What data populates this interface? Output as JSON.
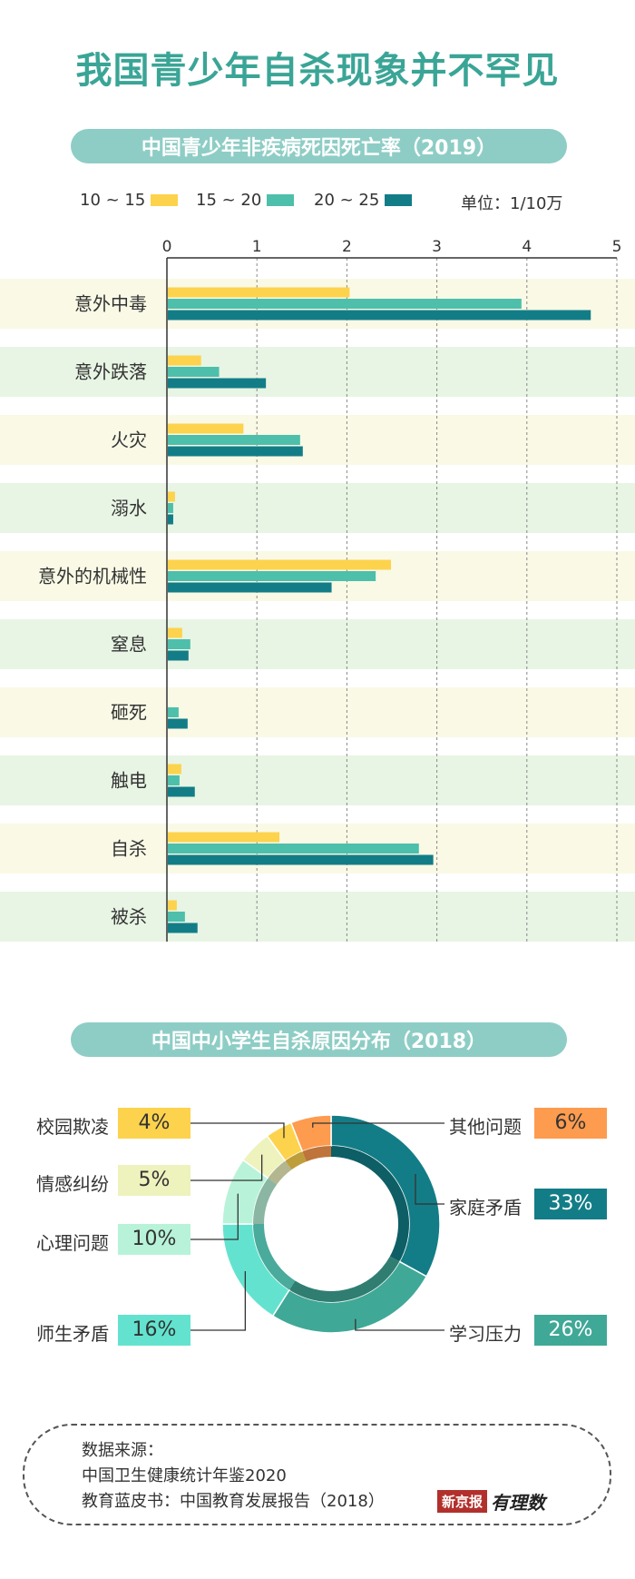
{
  "title": "我国青少年自杀现象并不罕见",
  "section1": {
    "title": "中国青少年非疾病死因死亡率（2019）",
    "unit": "单位：1/10万"
  },
  "section2": {
    "title": "中国中小学生自杀原因分布（2018）"
  },
  "source": {
    "heading": "数据来源：",
    "line1": "中国卫生健康统计年鉴2020",
    "line2": "教育蓝皮书：中国教育发展报告（2018）",
    "logo_text": "新京报",
    "logo_script": "有理数"
  },
  "chart_data": [
    {
      "type": "bar",
      "orientation": "horizontal",
      "categories": [
        "意外中毒",
        "意外跌落",
        "火灾",
        "溺水",
        "意外的机械性",
        "窒息",
        "砸死",
        "触电",
        "自杀",
        "被杀"
      ],
      "series": [
        {
          "name": "10 ~ 15",
          "color": "#fdd34d",
          "values": [
            2.02,
            0.37,
            0.84,
            0.08,
            2.48,
            0.16,
            0.0,
            0.15,
            1.24,
            0.1
          ]
        },
        {
          "name": "15 ~ 20",
          "color": "#4dbfab",
          "values": [
            3.93,
            0.57,
            1.47,
            0.06,
            2.31,
            0.25,
            0.12,
            0.13,
            2.79,
            0.19
          ]
        },
        {
          "name": "20 ~ 25",
          "color": "#137d87",
          "values": [
            4.7,
            1.09,
            1.5,
            0.06,
            1.82,
            0.23,
            0.22,
            0.3,
            2.95,
            0.33
          ]
        }
      ],
      "xlim": [
        0,
        5
      ],
      "xticks": [
        "0",
        "1",
        "2",
        "3",
        "4",
        "5"
      ],
      "grid": true,
      "row_colors": [
        "#f9f9e6",
        "#e8f5e4"
      ]
    },
    {
      "type": "pie",
      "style": "donut",
      "slices": [
        {
          "label": "家庭矛盾",
          "value": 33,
          "pct_text": "33%",
          "color": "#137d87"
        },
        {
          "label": "学习压力",
          "value": 26,
          "pct_text": "26%",
          "color": "#40a897"
        },
        {
          "label": "师生矛盾",
          "value": 16,
          "pct_text": "16%",
          "color": "#63e3cf"
        },
        {
          "label": "心理问题",
          "value": 10,
          "pct_text": "10%",
          "color": "#b8f3d9"
        },
        {
          "label": "情感纠纷",
          "value": 5,
          "pct_text": "5%",
          "color": "#eef2bd"
        },
        {
          "label": "校园欺凌",
          "value": 4,
          "pct_text": "4%",
          "color": "#fdd34d"
        },
        {
          "label": "其他问题",
          "value": 6,
          "pct_text": "6%",
          "color": "#fd9b4f"
        }
      ]
    }
  ]
}
